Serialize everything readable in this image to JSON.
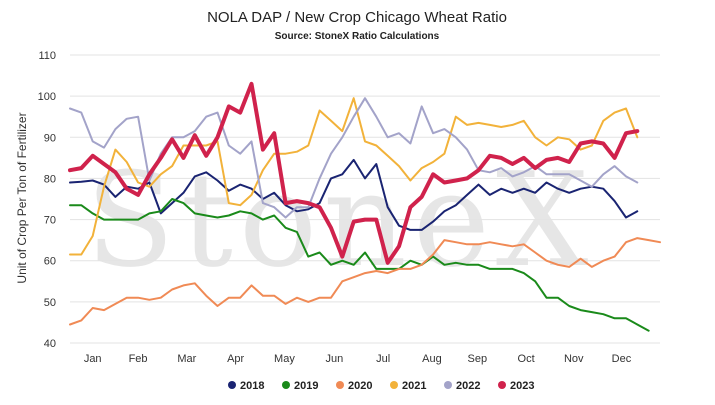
{
  "chart_data": {
    "type": "line",
    "title": "NOLA DAP / New Crop Chicago Wheat Ratio",
    "subtitle": "Source: StoneX Ratio Calculations",
    "ylabel": "Unit of Crop Per Ton of Fertilizer",
    "xlabel": "",
    "ylim": [
      40,
      110
    ],
    "yticks": [
      40,
      50,
      60,
      70,
      80,
      90,
      100,
      110
    ],
    "xlim": [
      1,
      53
    ],
    "months": [
      "Jan",
      "Feb",
      "Mar",
      "Apr",
      "May",
      "Jun",
      "Jul",
      "Aug",
      "Sep",
      "Oct",
      "Nov",
      "Dec"
    ],
    "month_positions": [
      3,
      7,
      11.3,
      15.6,
      19.9,
      24.3,
      28.6,
      32.9,
      36.9,
      41.2,
      45.4,
      49.6
    ],
    "grid": true,
    "legend_position": "bottom",
    "watermark": "StoneX",
    "series": [
      {
        "name": "2018",
        "color": "#1a2472",
        "width": 2,
        "values": [
          [
            1,
            79
          ],
          [
            2,
            79.2
          ],
          [
            3,
            79.5
          ],
          [
            4,
            78.5
          ],
          [
            5,
            75.5
          ],
          [
            6,
            78
          ],
          [
            7,
            77.5
          ],
          [
            8,
            79
          ],
          [
            9,
            71.5
          ],
          [
            10,
            74
          ],
          [
            11,
            76.5
          ],
          [
            12,
            80.5
          ],
          [
            13,
            81.5
          ],
          [
            14,
            79.5
          ],
          [
            15,
            77
          ],
          [
            16,
            78.5
          ],
          [
            17,
            77.5
          ],
          [
            18,
            75
          ],
          [
            19,
            76.5
          ],
          [
            20,
            73.5
          ],
          [
            21,
            72
          ],
          [
            22,
            72.5
          ],
          [
            23,
            74
          ],
          [
            24,
            80
          ],
          [
            25,
            81
          ],
          [
            26,
            84.5
          ],
          [
            27,
            80
          ],
          [
            28,
            83.5
          ],
          [
            29,
            73
          ],
          [
            30,
            68.5
          ],
          [
            31,
            67.5
          ],
          [
            32,
            67.5
          ],
          [
            33,
            69.5
          ],
          [
            34,
            72
          ],
          [
            35,
            73.5
          ],
          [
            36,
            76
          ],
          [
            37,
            78.5
          ],
          [
            38,
            76
          ],
          [
            39,
            77.5
          ],
          [
            40,
            76.5
          ],
          [
            41,
            77.5
          ],
          [
            42,
            76.5
          ],
          [
            43,
            79
          ],
          [
            44,
            77.5
          ],
          [
            45,
            76.5
          ],
          [
            46,
            77.5
          ],
          [
            47,
            78
          ],
          [
            48,
            77.5
          ],
          [
            49,
            74.5
          ],
          [
            50,
            70.5
          ],
          [
            51,
            72
          ]
        ]
      },
      {
        "name": "2019",
        "color": "#1a8a1a",
        "width": 2,
        "values": [
          [
            1,
            73.5
          ],
          [
            2,
            73.5
          ],
          [
            3,
            71.5
          ],
          [
            4,
            70
          ],
          [
            5,
            70
          ],
          [
            6,
            70
          ],
          [
            7,
            70
          ],
          [
            8,
            71.5
          ],
          [
            9,
            72
          ],
          [
            10,
            75
          ],
          [
            11,
            74
          ],
          [
            12,
            71.5
          ],
          [
            13,
            71
          ],
          [
            14,
            70.5
          ],
          [
            15,
            71
          ],
          [
            16,
            72
          ],
          [
            17,
            71.5
          ],
          [
            18,
            70
          ],
          [
            19,
            71
          ],
          [
            20,
            68
          ],
          [
            21,
            67
          ],
          [
            22,
            61
          ],
          [
            23,
            62
          ],
          [
            24,
            59
          ],
          [
            25,
            60
          ],
          [
            26,
            59
          ],
          [
            27,
            62
          ],
          [
            28,
            58
          ],
          [
            29,
            58
          ],
          [
            30,
            58
          ],
          [
            31,
            60
          ],
          [
            32,
            59
          ],
          [
            33,
            61
          ],
          [
            34,
            59
          ],
          [
            35,
            59.5
          ],
          [
            36,
            59
          ],
          [
            37,
            59
          ],
          [
            38,
            58
          ],
          [
            39,
            58
          ],
          [
            40,
            58
          ],
          [
            41,
            57
          ],
          [
            42,
            55
          ],
          [
            43,
            51
          ],
          [
            44,
            51
          ],
          [
            45,
            49
          ],
          [
            46,
            48
          ],
          [
            47,
            47.5
          ],
          [
            48,
            47
          ],
          [
            49,
            46
          ],
          [
            50,
            46
          ],
          [
            51,
            44.5
          ],
          [
            52,
            43
          ]
        ]
      },
      {
        "name": "2020",
        "color": "#f08a55",
        "width": 2,
        "values": [
          [
            1,
            44.5
          ],
          [
            2,
            45.5
          ],
          [
            3,
            48.5
          ],
          [
            4,
            48
          ],
          [
            5,
            49.5
          ],
          [
            6,
            51
          ],
          [
            7,
            51
          ],
          [
            8,
            50.5
          ],
          [
            9,
            51
          ],
          [
            10,
            53
          ],
          [
            11,
            54
          ],
          [
            12,
            54.5
          ],
          [
            13,
            51.5
          ],
          [
            14,
            49
          ],
          [
            15,
            51
          ],
          [
            16,
            51
          ],
          [
            17,
            54
          ],
          [
            18,
            51.5
          ],
          [
            19,
            51.5
          ],
          [
            20,
            49.5
          ],
          [
            21,
            51
          ],
          [
            22,
            50
          ],
          [
            23,
            51
          ],
          [
            24,
            51
          ],
          [
            25,
            55
          ],
          [
            26,
            56
          ],
          [
            27,
            57
          ],
          [
            28,
            57.5
          ],
          [
            29,
            57
          ],
          [
            30,
            58
          ],
          [
            31,
            58
          ],
          [
            32,
            59
          ],
          [
            33,
            61.5
          ],
          [
            34,
            65
          ],
          [
            35,
            64.5
          ],
          [
            36,
            64
          ],
          [
            37,
            64
          ],
          [
            38,
            64.5
          ],
          [
            39,
            64
          ],
          [
            40,
            63.5
          ],
          [
            41,
            64
          ],
          [
            42,
            62
          ],
          [
            43,
            60
          ],
          [
            44,
            59
          ],
          [
            45,
            58.5
          ],
          [
            46,
            60.5
          ],
          [
            47,
            58.5
          ],
          [
            48,
            60
          ],
          [
            49,
            61
          ],
          [
            50,
            64.5
          ],
          [
            51,
            65.5
          ],
          [
            52,
            65
          ],
          [
            53,
            64.5
          ]
        ]
      },
      {
        "name": "2021",
        "color": "#f2b23a",
        "width": 2,
        "values": [
          [
            1,
            61.5
          ],
          [
            2,
            61.5
          ],
          [
            3,
            66
          ],
          [
            4,
            78
          ],
          [
            5,
            87
          ],
          [
            6,
            84
          ],
          [
            7,
            79
          ],
          [
            8,
            78
          ],
          [
            9,
            81
          ],
          [
            10,
            83
          ],
          [
            11,
            88
          ],
          [
            12,
            88
          ],
          [
            13,
            88
          ],
          [
            14,
            89
          ],
          [
            15,
            74
          ],
          [
            16,
            73.5
          ],
          [
            17,
            76
          ],
          [
            18,
            82
          ],
          [
            19,
            86
          ],
          [
            20,
            86
          ],
          [
            21,
            86.5
          ],
          [
            22,
            88
          ],
          [
            23,
            96.5
          ],
          [
            24,
            94
          ],
          [
            25,
            91.5
          ],
          [
            26,
            99.5
          ],
          [
            27,
            89
          ],
          [
            28,
            88
          ],
          [
            29,
            85.5
          ],
          [
            30,
            83
          ],
          [
            31,
            79.5
          ],
          [
            32,
            82.5
          ],
          [
            33,
            84
          ],
          [
            34,
            86
          ],
          [
            35,
            95
          ],
          [
            36,
            93
          ],
          [
            37,
            93.5
          ],
          [
            38,
            93
          ],
          [
            39,
            92.5
          ],
          [
            40,
            93
          ],
          [
            41,
            94
          ],
          [
            42,
            90
          ],
          [
            43,
            88
          ],
          [
            44,
            90
          ],
          [
            45,
            89.5
          ],
          [
            46,
            87
          ],
          [
            47,
            88
          ],
          [
            48,
            94
          ],
          [
            49,
            96
          ],
          [
            50,
            97
          ],
          [
            51,
            90
          ]
        ]
      },
      {
        "name": "2022",
        "color": "#a3a3c9",
        "width": 2,
        "values": [
          [
            1,
            97
          ],
          [
            2,
            96
          ],
          [
            3,
            89
          ],
          [
            4,
            87.5
          ],
          [
            5,
            92
          ],
          [
            6,
            94.5
          ],
          [
            7,
            95
          ],
          [
            8,
            79.5
          ],
          [
            9,
            86
          ],
          [
            10,
            90
          ],
          [
            11,
            90
          ],
          [
            12,
            91.5
          ],
          [
            13,
            95
          ],
          [
            14,
            96
          ],
          [
            15,
            88
          ],
          [
            16,
            86
          ],
          [
            17,
            89
          ],
          [
            18,
            74
          ],
          [
            19,
            73
          ],
          [
            20,
            70.5
          ],
          [
            21,
            73
          ],
          [
            22,
            73
          ],
          [
            23,
            80
          ],
          [
            24,
            86
          ],
          [
            25,
            90
          ],
          [
            26,
            95
          ],
          [
            27,
            99.5
          ],
          [
            28,
            95
          ],
          [
            29,
            90
          ],
          [
            30,
            91
          ],
          [
            31,
            88.5
          ],
          [
            32,
            97.5
          ],
          [
            33,
            91
          ],
          [
            34,
            92
          ],
          [
            35,
            90
          ],
          [
            36,
            87
          ],
          [
            37,
            82
          ],
          [
            38,
            81.5
          ],
          [
            39,
            82.5
          ],
          [
            40,
            80.5
          ],
          [
            41,
            81.5
          ],
          [
            42,
            83
          ],
          [
            43,
            81
          ],
          [
            44,
            81
          ],
          [
            45,
            81
          ],
          [
            46,
            79.5
          ],
          [
            47,
            78
          ],
          [
            48,
            81
          ],
          [
            49,
            83
          ],
          [
            50,
            80.5
          ],
          [
            51,
            79
          ]
        ]
      },
      {
        "name": "2023",
        "color": "#d0224c",
        "width": 4,
        "values": [
          [
            1,
            82
          ],
          [
            2,
            82.5
          ],
          [
            3,
            85.5
          ],
          [
            4,
            83.5
          ],
          [
            5,
            81.5
          ],
          [
            6,
            77.5
          ],
          [
            7,
            76
          ],
          [
            8,
            81
          ],
          [
            9,
            85
          ],
          [
            10,
            89.5
          ],
          [
            11,
            85
          ],
          [
            12,
            90.5
          ],
          [
            13,
            85.5
          ],
          [
            14,
            90
          ],
          [
            15,
            97.5
          ],
          [
            16,
            96
          ],
          [
            17,
            103
          ],
          [
            18,
            87
          ],
          [
            19,
            91
          ],
          [
            20,
            74
          ],
          [
            21,
            74.5
          ],
          [
            22,
            74
          ],
          [
            23,
            73
          ],
          [
            24,
            68
          ],
          [
            25,
            61
          ],
          [
            26,
            69.5
          ],
          [
            27,
            70
          ],
          [
            28,
            70
          ],
          [
            29,
            59.5
          ],
          [
            30,
            63.5
          ],
          [
            31,
            73
          ],
          [
            32,
            75.5
          ],
          [
            33,
            81
          ],
          [
            34,
            79
          ],
          [
            35,
            79.5
          ],
          [
            36,
            80
          ],
          [
            37,
            82
          ],
          [
            38,
            85.5
          ],
          [
            39,
            85
          ],
          [
            40,
            83.5
          ],
          [
            41,
            85
          ],
          [
            42,
            82.5
          ],
          [
            43,
            84.5
          ],
          [
            44,
            85
          ],
          [
            45,
            84
          ],
          [
            46,
            88.5
          ],
          [
            47,
            89
          ],
          [
            48,
            88.5
          ],
          [
            49,
            85
          ],
          [
            50,
            91
          ],
          [
            51,
            91.5
          ]
        ]
      }
    ]
  }
}
